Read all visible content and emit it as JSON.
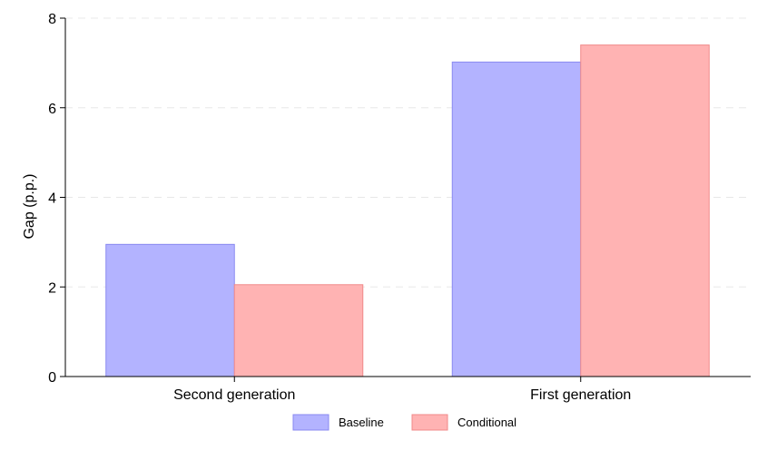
{
  "chart_data": {
    "type": "bar",
    "title": "",
    "xlabel": "",
    "ylabel": "Gap (p.p.)",
    "categories": [
      "Second generation",
      "First generation"
    ],
    "series": [
      {
        "name": "Baseline",
        "values": [
          2.95,
          7.02
        ],
        "fill": "#b3b3ff",
        "stroke": "#8a8af0"
      },
      {
        "name": "Conditional",
        "values": [
          2.05,
          7.4
        ],
        "fill": "#ffb3b3",
        "stroke": "#f08a8a"
      }
    ],
    "ylim": [
      0,
      8
    ],
    "yticks": [
      0,
      2,
      4,
      6,
      8
    ],
    "grid": true,
    "legend_position": "bottom-center"
  }
}
